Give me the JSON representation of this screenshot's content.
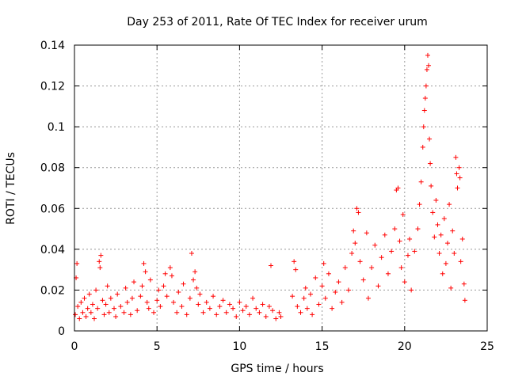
{
  "chart_data": {
    "type": "scatter",
    "title": "Day 253 of 2011, Rate Of TEC Index for receiver urum",
    "xlabel": "GPS time / hours",
    "ylabel": "ROTI / TECUs",
    "xlim": [
      0,
      25
    ],
    "ylim": [
      0,
      0.14
    ],
    "x_ticks": [
      0,
      5,
      10,
      15,
      20,
      25
    ],
    "x_tick_labels": [
      "0",
      "5",
      "10",
      "15",
      "20",
      "25"
    ],
    "y_ticks": [
      0,
      0.02,
      0.04,
      0.06,
      0.08,
      0.1,
      0.12,
      0.14
    ],
    "y_tick_labels": [
      "0",
      "0.02",
      "0.04",
      "0.06",
      "0.08",
      "0.1",
      "0.12",
      "0.14"
    ],
    "grid": true,
    "marker": "+",
    "series": [
      {
        "name": "ROTI",
        "color": "#ff0000",
        "points": [
          [
            0.05,
            0.008
          ],
          [
            0.1,
            0.026
          ],
          [
            0.15,
            0.033
          ],
          [
            0.2,
            0.012
          ],
          [
            0.3,
            0.006
          ],
          [
            0.4,
            0.014
          ],
          [
            0.5,
            0.009
          ],
          [
            0.6,
            0.016
          ],
          [
            0.7,
            0.007
          ],
          [
            0.8,
            0.011
          ],
          [
            0.9,
            0.018
          ],
          [
            1.0,
            0.009
          ],
          [
            1.1,
            0.013
          ],
          [
            1.2,
            0.006
          ],
          [
            1.3,
            0.02
          ],
          [
            1.4,
            0.011
          ],
          [
            1.5,
            0.034
          ],
          [
            1.55,
            0.031
          ],
          [
            1.6,
            0.037
          ],
          [
            1.7,
            0.015
          ],
          [
            1.8,
            0.008
          ],
          [
            1.9,
            0.013
          ],
          [
            2.0,
            0.022
          ],
          [
            2.1,
            0.009
          ],
          [
            2.2,
            0.016
          ],
          [
            2.4,
            0.011
          ],
          [
            2.5,
            0.007
          ],
          [
            2.6,
            0.018
          ],
          [
            2.8,
            0.012
          ],
          [
            3.0,
            0.009
          ],
          [
            3.1,
            0.021
          ],
          [
            3.2,
            0.014
          ],
          [
            3.4,
            0.008
          ],
          [
            3.5,
            0.016
          ],
          [
            3.6,
            0.024
          ],
          [
            3.8,
            0.01
          ],
          [
            4.0,
            0.017
          ],
          [
            4.1,
            0.022
          ],
          [
            4.2,
            0.033
          ],
          [
            4.3,
            0.029
          ],
          [
            4.4,
            0.014
          ],
          [
            4.5,
            0.011
          ],
          [
            4.6,
            0.025
          ],
          [
            4.8,
            0.009
          ],
          [
            5.0,
            0.015
          ],
          [
            5.1,
            0.02
          ],
          [
            5.2,
            0.012
          ],
          [
            5.4,
            0.022
          ],
          [
            5.5,
            0.028
          ],
          [
            5.6,
            0.017
          ],
          [
            5.8,
            0.031
          ],
          [
            5.9,
            0.027
          ],
          [
            6.0,
            0.014
          ],
          [
            6.2,
            0.009
          ],
          [
            6.3,
            0.019
          ],
          [
            6.5,
            0.012
          ],
          [
            6.6,
            0.023
          ],
          [
            6.8,
            0.008
          ],
          [
            7.0,
            0.016
          ],
          [
            7.1,
            0.038
          ],
          [
            7.2,
            0.025
          ],
          [
            7.3,
            0.029
          ],
          [
            7.4,
            0.021
          ],
          [
            7.5,
            0.013
          ],
          [
            7.6,
            0.018
          ],
          [
            7.8,
            0.009
          ],
          [
            8.0,
            0.014
          ],
          [
            8.2,
            0.011
          ],
          [
            8.4,
            0.017
          ],
          [
            8.6,
            0.008
          ],
          [
            8.8,
            0.012
          ],
          [
            9.0,
            0.015
          ],
          [
            9.2,
            0.009
          ],
          [
            9.4,
            0.013
          ],
          [
            9.6,
            0.011
          ],
          [
            9.8,
            0.007
          ],
          [
            10.0,
            0.014
          ],
          [
            10.2,
            0.01
          ],
          [
            10.4,
            0.012
          ],
          [
            10.6,
            0.008
          ],
          [
            10.8,
            0.016
          ],
          [
            11.0,
            0.011
          ],
          [
            11.2,
            0.009
          ],
          [
            11.4,
            0.013
          ],
          [
            11.6,
            0.007
          ],
          [
            11.8,
            0.012
          ],
          [
            11.9,
            0.032
          ],
          [
            12.0,
            0.01
          ],
          [
            12.2,
            0.006
          ],
          [
            12.4,
            0.009
          ],
          [
            12.5,
            0.007
          ],
          [
            13.2,
            0.017
          ],
          [
            13.3,
            0.034
          ],
          [
            13.4,
            0.03
          ],
          [
            13.5,
            0.012
          ],
          [
            13.7,
            0.009
          ],
          [
            13.9,
            0.016
          ],
          [
            14.0,
            0.021
          ],
          [
            14.1,
            0.011
          ],
          [
            14.3,
            0.018
          ],
          [
            14.4,
            0.008
          ],
          [
            14.6,
            0.026
          ],
          [
            14.8,
            0.013
          ],
          [
            15.0,
            0.022
          ],
          [
            15.1,
            0.033
          ],
          [
            15.2,
            0.016
          ],
          [
            15.4,
            0.028
          ],
          [
            15.6,
            0.011
          ],
          [
            15.8,
            0.019
          ],
          [
            16.0,
            0.024
          ],
          [
            16.2,
            0.014
          ],
          [
            16.4,
            0.031
          ],
          [
            16.6,
            0.02
          ],
          [
            16.8,
            0.038
          ],
          [
            16.9,
            0.049
          ],
          [
            17.0,
            0.043
          ],
          [
            17.1,
            0.06
          ],
          [
            17.2,
            0.058
          ],
          [
            17.3,
            0.034
          ],
          [
            17.5,
            0.025
          ],
          [
            17.7,
            0.048
          ],
          [
            17.8,
            0.016
          ],
          [
            18.0,
            0.031
          ],
          [
            18.2,
            0.042
          ],
          [
            18.4,
            0.022
          ],
          [
            18.6,
            0.036
          ],
          [
            18.8,
            0.047
          ],
          [
            19.0,
            0.028
          ],
          [
            19.2,
            0.039
          ],
          [
            19.4,
            0.05
          ],
          [
            19.5,
            0.069
          ],
          [
            19.6,
            0.07
          ],
          [
            19.7,
            0.044
          ],
          [
            19.8,
            0.031
          ],
          [
            19.9,
            0.057
          ],
          [
            20.0,
            0.024
          ],
          [
            20.2,
            0.037
          ],
          [
            20.3,
            0.045
          ],
          [
            20.4,
            0.02
          ],
          [
            20.6,
            0.039
          ],
          [
            20.8,
            0.05
          ],
          [
            20.9,
            0.062
          ],
          [
            21.0,
            0.073
          ],
          [
            21.1,
            0.09
          ],
          [
            21.15,
            0.1
          ],
          [
            21.2,
            0.108
          ],
          [
            21.25,
            0.114
          ],
          [
            21.3,
            0.12
          ],
          [
            21.35,
            0.128
          ],
          [
            21.4,
            0.135
          ],
          [
            21.45,
            0.13
          ],
          [
            21.5,
            0.094
          ],
          [
            21.55,
            0.082
          ],
          [
            21.6,
            0.071
          ],
          [
            21.7,
            0.058
          ],
          [
            21.8,
            0.046
          ],
          [
            21.9,
            0.064
          ],
          [
            22.0,
            0.052
          ],
          [
            22.1,
            0.038
          ],
          [
            22.2,
            0.047
          ],
          [
            22.3,
            0.028
          ],
          [
            22.4,
            0.055
          ],
          [
            22.5,
            0.033
          ],
          [
            22.6,
            0.043
          ],
          [
            22.7,
            0.062
          ],
          [
            22.8,
            0.021
          ],
          [
            22.9,
            0.049
          ],
          [
            23.0,
            0.038
          ],
          [
            23.1,
            0.085
          ],
          [
            23.15,
            0.077
          ],
          [
            23.2,
            0.07
          ],
          [
            23.3,
            0.08
          ],
          [
            23.35,
            0.075
          ],
          [
            23.4,
            0.034
          ],
          [
            23.5,
            0.045
          ],
          [
            23.6,
            0.023
          ],
          [
            23.65,
            0.015
          ]
        ]
      }
    ]
  }
}
